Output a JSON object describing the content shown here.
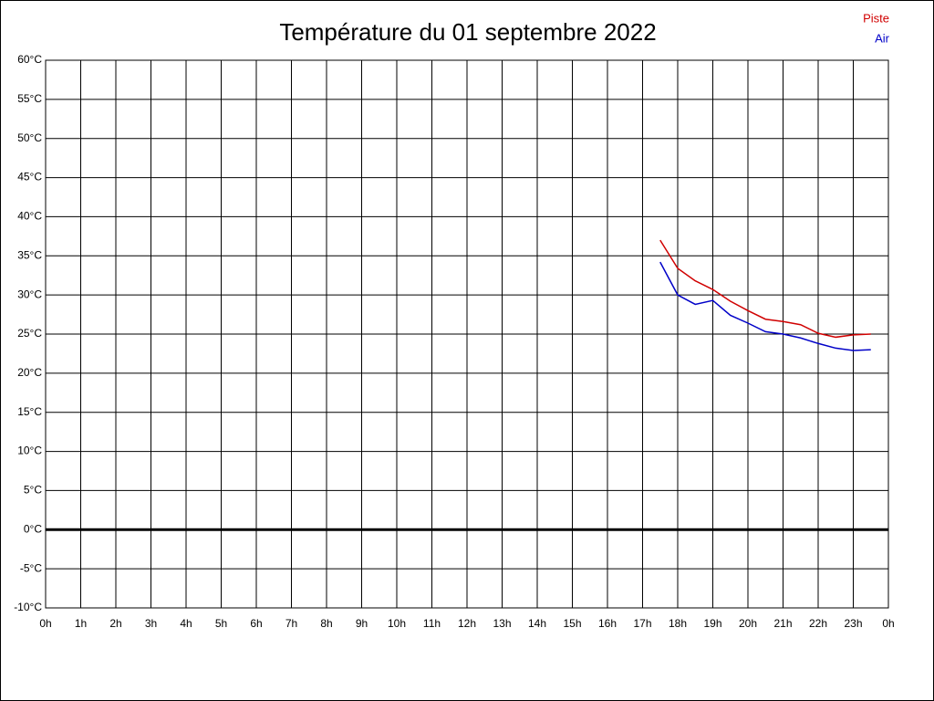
{
  "chart_data": {
    "type": "line",
    "title": "Température du 01 septembre 2022",
    "x": [
      17.5,
      18,
      18.5,
      19,
      19.5,
      20,
      20.5,
      21,
      21.5,
      22,
      22.5,
      23,
      23.5
    ],
    "series": [
      {
        "name": "Piste",
        "color": "#d00000",
        "values": [
          37.0,
          33.4,
          31.8,
          30.7,
          29.2,
          28.0,
          26.9,
          26.6,
          26.2,
          25.1,
          24.6,
          24.9,
          25.0
        ]
      },
      {
        "name": "Air",
        "color": "#0000c8",
        "values": [
          34.2,
          30.0,
          28.8,
          29.3,
          27.4,
          26.4,
          25.3,
          25.0,
          24.5,
          23.8,
          23.2,
          22.9,
          23.0
        ]
      }
    ],
    "xlim": [
      0,
      24
    ],
    "xticks": [
      {
        "value": 0,
        "label": "0h"
      },
      {
        "value": 1,
        "label": "1h"
      },
      {
        "value": 2,
        "label": "2h"
      },
      {
        "value": 3,
        "label": "3h"
      },
      {
        "value": 4,
        "label": "4h"
      },
      {
        "value": 5,
        "label": "5h"
      },
      {
        "value": 6,
        "label": "6h"
      },
      {
        "value": 7,
        "label": "7h"
      },
      {
        "value": 8,
        "label": "8h"
      },
      {
        "value": 9,
        "label": "9h"
      },
      {
        "value": 10,
        "label": "10h"
      },
      {
        "value": 11,
        "label": "11h"
      },
      {
        "value": 12,
        "label": "12h"
      },
      {
        "value": 13,
        "label": "13h"
      },
      {
        "value": 14,
        "label": "14h"
      },
      {
        "value": 15,
        "label": "15h"
      },
      {
        "value": 16,
        "label": "16h"
      },
      {
        "value": 17,
        "label": "17h"
      },
      {
        "value": 18,
        "label": "18h"
      },
      {
        "value": 19,
        "label": "19h"
      },
      {
        "value": 20,
        "label": "20h"
      },
      {
        "value": 21,
        "label": "21h"
      },
      {
        "value": 22,
        "label": "22h"
      },
      {
        "value": 23,
        "label": "23h"
      },
      {
        "value": 24,
        "label": "0h"
      }
    ],
    "ylim": [
      -10,
      60
    ],
    "yticks": [
      {
        "value": -10,
        "label": "-10°C"
      },
      {
        "value": -5,
        "label": "-5°C"
      },
      {
        "value": 0,
        "label": "0°C"
      },
      {
        "value": 5,
        "label": "5°C"
      },
      {
        "value": 10,
        "label": "10°C"
      },
      {
        "value": 15,
        "label": "15°C"
      },
      {
        "value": 20,
        "label": "20°C"
      },
      {
        "value": 25,
        "label": "25°C"
      },
      {
        "value": 30,
        "label": "30°C"
      },
      {
        "value": 35,
        "label": "35°C"
      },
      {
        "value": 40,
        "label": "40°C"
      },
      {
        "value": 45,
        "label": "45°C"
      },
      {
        "value": 50,
        "label": "50°C"
      },
      {
        "value": 55,
        "label": "55°C"
      },
      {
        "value": 60,
        "label": "60°C"
      }
    ],
    "grid": true,
    "legend": "top-right"
  }
}
